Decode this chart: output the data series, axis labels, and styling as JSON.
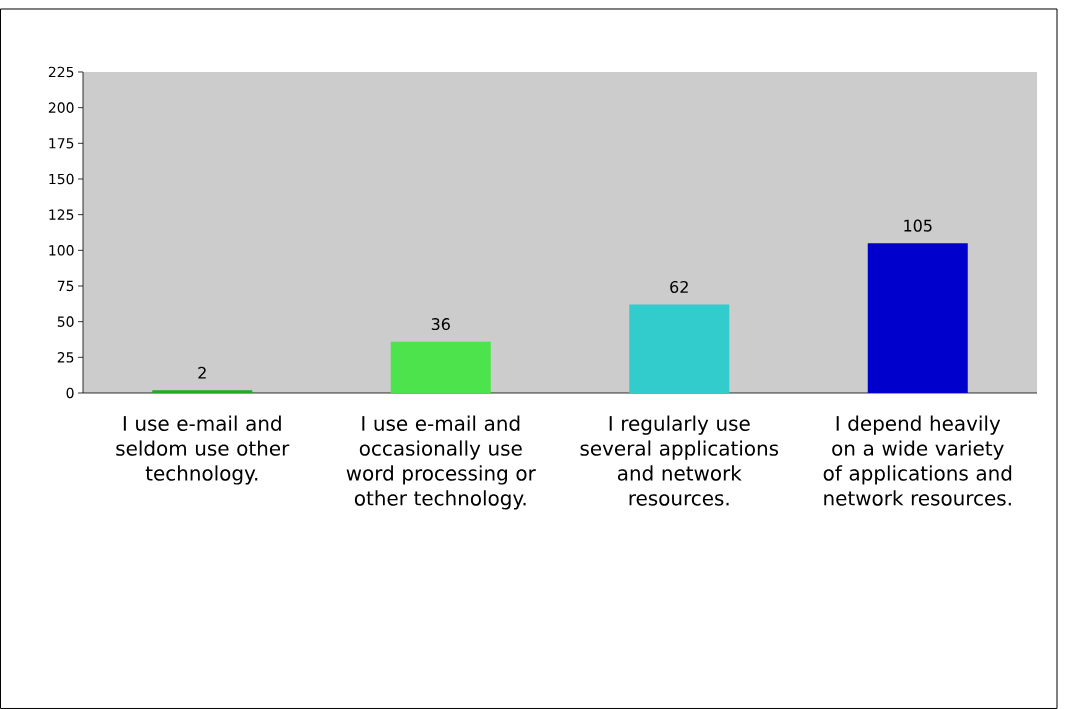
{
  "chart_data": {
    "type": "bar",
    "categories": [
      "I use e-mail and seldom use other technology.",
      "I use e-mail and occasionally use word processing or other technology.",
      "I regularly use several applications and network resources.",
      "I depend heavily on a wide variety of applications and network resources."
    ],
    "values": [
      2,
      36,
      62,
      105
    ],
    "colors": [
      "#22aa22",
      "#4ce34c",
      "#33cccc",
      "#0000cc"
    ],
    "ylim": [
      0,
      225
    ],
    "yticks": [
      0,
      25,
      50,
      75,
      100,
      125,
      150,
      175,
      200,
      225
    ],
    "data_labels": true
  }
}
